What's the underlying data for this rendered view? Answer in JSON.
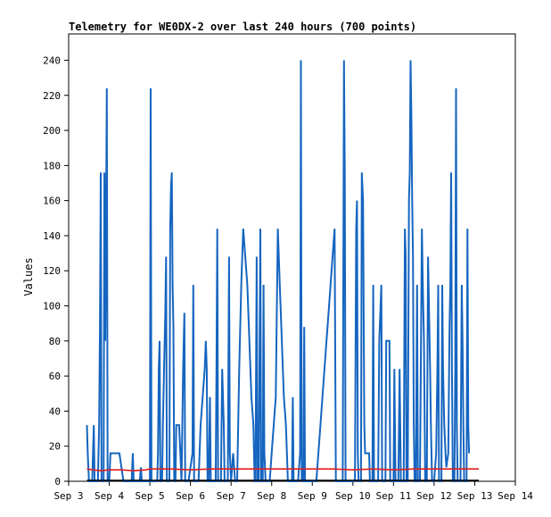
{
  "chart_data": {
    "type": "line",
    "title": "Telemetry for WE0DX-2 over last 240 hours (700 points)",
    "xlabel": "",
    "ylabel": "Values",
    "x_ticks": [
      "Sep 3",
      "Sep 4",
      "Sep 5",
      "Sep 6",
      "Sep 7",
      "Sep 8",
      "Sep 9",
      "Sep 10",
      "Sep 11",
      "Sep 12",
      "Sep 13",
      "Sep 14"
    ],
    "xlim": [
      3,
      14
    ],
    "ylim": [
      0,
      255
    ],
    "y_ticks": [
      0,
      20,
      40,
      60,
      80,
      100,
      120,
      140,
      160,
      180,
      200,
      220,
      240
    ],
    "grid": false,
    "series": [
      {
        "color": "#1565c0",
        "points": [
          [
            3.45,
            32
          ],
          [
            3.47,
            16
          ],
          [
            3.5,
            0
          ],
          [
            3.58,
            0
          ],
          [
            3.6,
            16
          ],
          [
            3.62,
            32
          ],
          [
            3.64,
            0
          ],
          [
            3.72,
            0
          ],
          [
            3.75,
            32
          ],
          [
            3.77,
            88
          ],
          [
            3.79,
            176
          ],
          [
            3.81,
            0
          ],
          [
            3.86,
            0
          ],
          [
            3.88,
            176
          ],
          [
            3.9,
            80
          ],
          [
            3.92,
            144
          ],
          [
            3.94,
            224
          ],
          [
            3.96,
            0
          ],
          [
            4.0,
            0
          ],
          [
            4.03,
            16
          ],
          [
            4.08,
            16
          ],
          [
            4.18,
            16
          ],
          [
            4.25,
            16
          ],
          [
            4.35,
            0
          ],
          [
            4.55,
            0
          ],
          [
            4.58,
            16
          ],
          [
            4.6,
            0
          ],
          [
            4.75,
            0
          ],
          [
            4.78,
            8
          ],
          [
            4.8,
            0
          ],
          [
            5.0,
            0
          ],
          [
            5.02,
            224
          ],
          [
            5.04,
            0
          ],
          [
            5.18,
            0
          ],
          [
            5.2,
            16
          ],
          [
            5.22,
            64
          ],
          [
            5.24,
            80
          ],
          [
            5.26,
            0
          ],
          [
            5.3,
            0
          ],
          [
            5.32,
            32
          ],
          [
            5.35,
            64
          ],
          [
            5.38,
            96
          ],
          [
            5.4,
            128
          ],
          [
            5.42,
            0
          ],
          [
            5.48,
            0
          ],
          [
            5.5,
            144
          ],
          [
            5.52,
            168
          ],
          [
            5.54,
            176
          ],
          [
            5.56,
            112
          ],
          [
            5.58,
            88
          ],
          [
            5.6,
            0
          ],
          [
            5.63,
            0
          ],
          [
            5.65,
            32
          ],
          [
            5.68,
            32
          ],
          [
            5.72,
            32
          ],
          [
            5.75,
            16
          ],
          [
            5.78,
            0
          ],
          [
            5.8,
            32
          ],
          [
            5.82,
            64
          ],
          [
            5.85,
            96
          ],
          [
            5.87,
            0
          ],
          [
            5.92,
            0
          ],
          [
            5.95,
            0
          ],
          [
            6.05,
            16
          ],
          [
            6.07,
            112
          ],
          [
            6.09,
            0
          ],
          [
            6.2,
            0
          ],
          [
            6.25,
            32
          ],
          [
            6.3,
            48
          ],
          [
            6.35,
            64
          ],
          [
            6.38,
            80
          ],
          [
            6.4,
            64
          ],
          [
            6.42,
            0
          ],
          [
            6.45,
            0
          ],
          [
            6.48,
            48
          ],
          [
            6.5,
            0
          ],
          [
            6.62,
            0
          ],
          [
            6.64,
            64
          ],
          [
            6.66,
            144
          ],
          [
            6.68,
            0
          ],
          [
            6.75,
            0
          ],
          [
            6.78,
            64
          ],
          [
            6.8,
            48
          ],
          [
            6.82,
            32
          ],
          [
            6.84,
            0
          ],
          [
            6.92,
            0
          ],
          [
            6.95,
            128
          ],
          [
            6.97,
            16
          ],
          [
            7.0,
            0
          ],
          [
            7.05,
            16
          ],
          [
            7.1,
            0
          ],
          [
            7.15,
            0
          ],
          [
            7.2,
            64
          ],
          [
            7.25,
            112
          ],
          [
            7.3,
            144
          ],
          [
            7.35,
            128
          ],
          [
            7.4,
            112
          ],
          [
            7.45,
            80
          ],
          [
            7.5,
            48
          ],
          [
            7.55,
            32
          ],
          [
            7.58,
            0
          ],
          [
            7.6,
            0
          ],
          [
            7.63,
            128
          ],
          [
            7.65,
            0
          ],
          [
            7.68,
            0
          ],
          [
            7.72,
            144
          ],
          [
            7.74,
            0
          ],
          [
            7.78,
            0
          ],
          [
            7.8,
            112
          ],
          [
            7.82,
            16
          ],
          [
            7.85,
            0
          ],
          [
            7.95,
            0
          ],
          [
            8.0,
            16
          ],
          [
            8.05,
            32
          ],
          [
            8.1,
            48
          ],
          [
            8.15,
            144
          ],
          [
            8.2,
            112
          ],
          [
            8.25,
            80
          ],
          [
            8.3,
            48
          ],
          [
            8.35,
            32
          ],
          [
            8.4,
            0
          ],
          [
            8.5,
            0
          ],
          [
            8.52,
            48
          ],
          [
            8.54,
            0
          ],
          [
            8.65,
            0
          ],
          [
            8.7,
            16
          ],
          [
            8.72,
            240
          ],
          [
            8.74,
            0
          ],
          [
            8.78,
            0
          ],
          [
            8.8,
            88
          ],
          [
            8.82,
            0
          ],
          [
            9.1,
            0
          ],
          [
            9.2,
            32
          ],
          [
            9.3,
            64
          ],
          [
            9.4,
            96
          ],
          [
            9.5,
            128
          ],
          [
            9.55,
            144
          ],
          [
            9.58,
            0
          ],
          [
            9.75,
            0
          ],
          [
            9.78,
            240
          ],
          [
            9.8,
            176
          ],
          [
            9.82,
            0
          ],
          [
            10.05,
            0
          ],
          [
            10.08,
            144
          ],
          [
            10.1,
            160
          ],
          [
            10.12,
            16
          ],
          [
            10.14,
            0
          ],
          [
            10.2,
            0
          ],
          [
            10.22,
            176
          ],
          [
            10.25,
            160
          ],
          [
            10.28,
            32
          ],
          [
            10.3,
            16
          ],
          [
            10.35,
            16
          ],
          [
            10.4,
            16
          ],
          [
            10.42,
            0
          ],
          [
            10.48,
            0
          ],
          [
            10.5,
            112
          ],
          [
            10.52,
            0
          ],
          [
            10.62,
            0
          ],
          [
            10.65,
            80
          ],
          [
            10.7,
            112
          ],
          [
            10.72,
            0
          ],
          [
            10.8,
            0
          ],
          [
            10.82,
            80
          ],
          [
            10.85,
            80
          ],
          [
            10.9,
            80
          ],
          [
            10.92,
            0
          ],
          [
            11.0,
            0
          ],
          [
            11.02,
            64
          ],
          [
            11.05,
            0
          ],
          [
            11.12,
            0
          ],
          [
            11.15,
            64
          ],
          [
            11.18,
            0
          ],
          [
            11.25,
            0
          ],
          [
            11.28,
            144
          ],
          [
            11.3,
            128
          ],
          [
            11.32,
            0
          ],
          [
            11.35,
            0
          ],
          [
            11.38,
            160
          ],
          [
            11.4,
            176
          ],
          [
            11.42,
            240
          ],
          [
            11.44,
            208
          ],
          [
            11.46,
            160
          ],
          [
            11.48,
            128
          ],
          [
            11.5,
            32
          ],
          [
            11.52,
            0
          ],
          [
            11.55,
            0
          ],
          [
            11.58,
            112
          ],
          [
            11.6,
            0
          ],
          [
            11.65,
            0
          ],
          [
            11.7,
            144
          ],
          [
            11.72,
            112
          ],
          [
            11.75,
            80
          ],
          [
            11.78,
            0
          ],
          [
            11.82,
            0
          ],
          [
            11.85,
            128
          ],
          [
            11.9,
            64
          ],
          [
            11.92,
            32
          ],
          [
            11.95,
            0
          ],
          [
            12.0,
            0
          ],
          [
            12.05,
            16
          ],
          [
            12.08,
            64
          ],
          [
            12.1,
            112
          ],
          [
            12.12,
            0
          ],
          [
            12.18,
            0
          ],
          [
            12.2,
            112
          ],
          [
            12.22,
            64
          ],
          [
            12.25,
            32
          ],
          [
            12.28,
            16
          ],
          [
            12.3,
            8
          ],
          [
            12.35,
            16
          ],
          [
            12.38,
            88
          ],
          [
            12.4,
            112
          ],
          [
            12.42,
            176
          ],
          [
            12.44,
            64
          ],
          [
            12.46,
            0
          ],
          [
            12.5,
            0
          ],
          [
            12.52,
            64
          ],
          [
            12.54,
            224
          ],
          [
            12.56,
            32
          ],
          [
            12.58,
            0
          ],
          [
            12.65,
            0
          ],
          [
            12.68,
            112
          ],
          [
            12.7,
            80
          ],
          [
            12.72,
            32
          ],
          [
            12.74,
            0
          ],
          [
            12.8,
            0
          ],
          [
            12.82,
            144
          ],
          [
            12.84,
            32
          ],
          [
            12.86,
            16
          ]
        ]
      },
      {
        "color": "#e02020",
        "points": [
          [
            3.45,
            7
          ],
          [
            3.6,
            6.5
          ],
          [
            3.8,
            6
          ],
          [
            4.0,
            6.5
          ],
          [
            4.3,
            6.5
          ],
          [
            4.6,
            6
          ],
          [
            4.9,
            6.5
          ],
          [
            5.0,
            7
          ],
          [
            5.5,
            7
          ],
          [
            6.0,
            6.5
          ],
          [
            6.5,
            7
          ],
          [
            7.0,
            7
          ],
          [
            7.5,
            7
          ],
          [
            8.0,
            7
          ],
          [
            8.5,
            7
          ],
          [
            9.0,
            7
          ],
          [
            9.5,
            7
          ],
          [
            10.0,
            6.5
          ],
          [
            10.5,
            7
          ],
          [
            11.0,
            6.5
          ],
          [
            11.5,
            7
          ],
          [
            12.0,
            7
          ],
          [
            12.5,
            7
          ],
          [
            13.1,
            7
          ]
        ]
      },
      {
        "color": "#000000",
        "points": [
          [
            3.45,
            0.5
          ],
          [
            13.1,
            0.5
          ]
        ]
      }
    ]
  }
}
